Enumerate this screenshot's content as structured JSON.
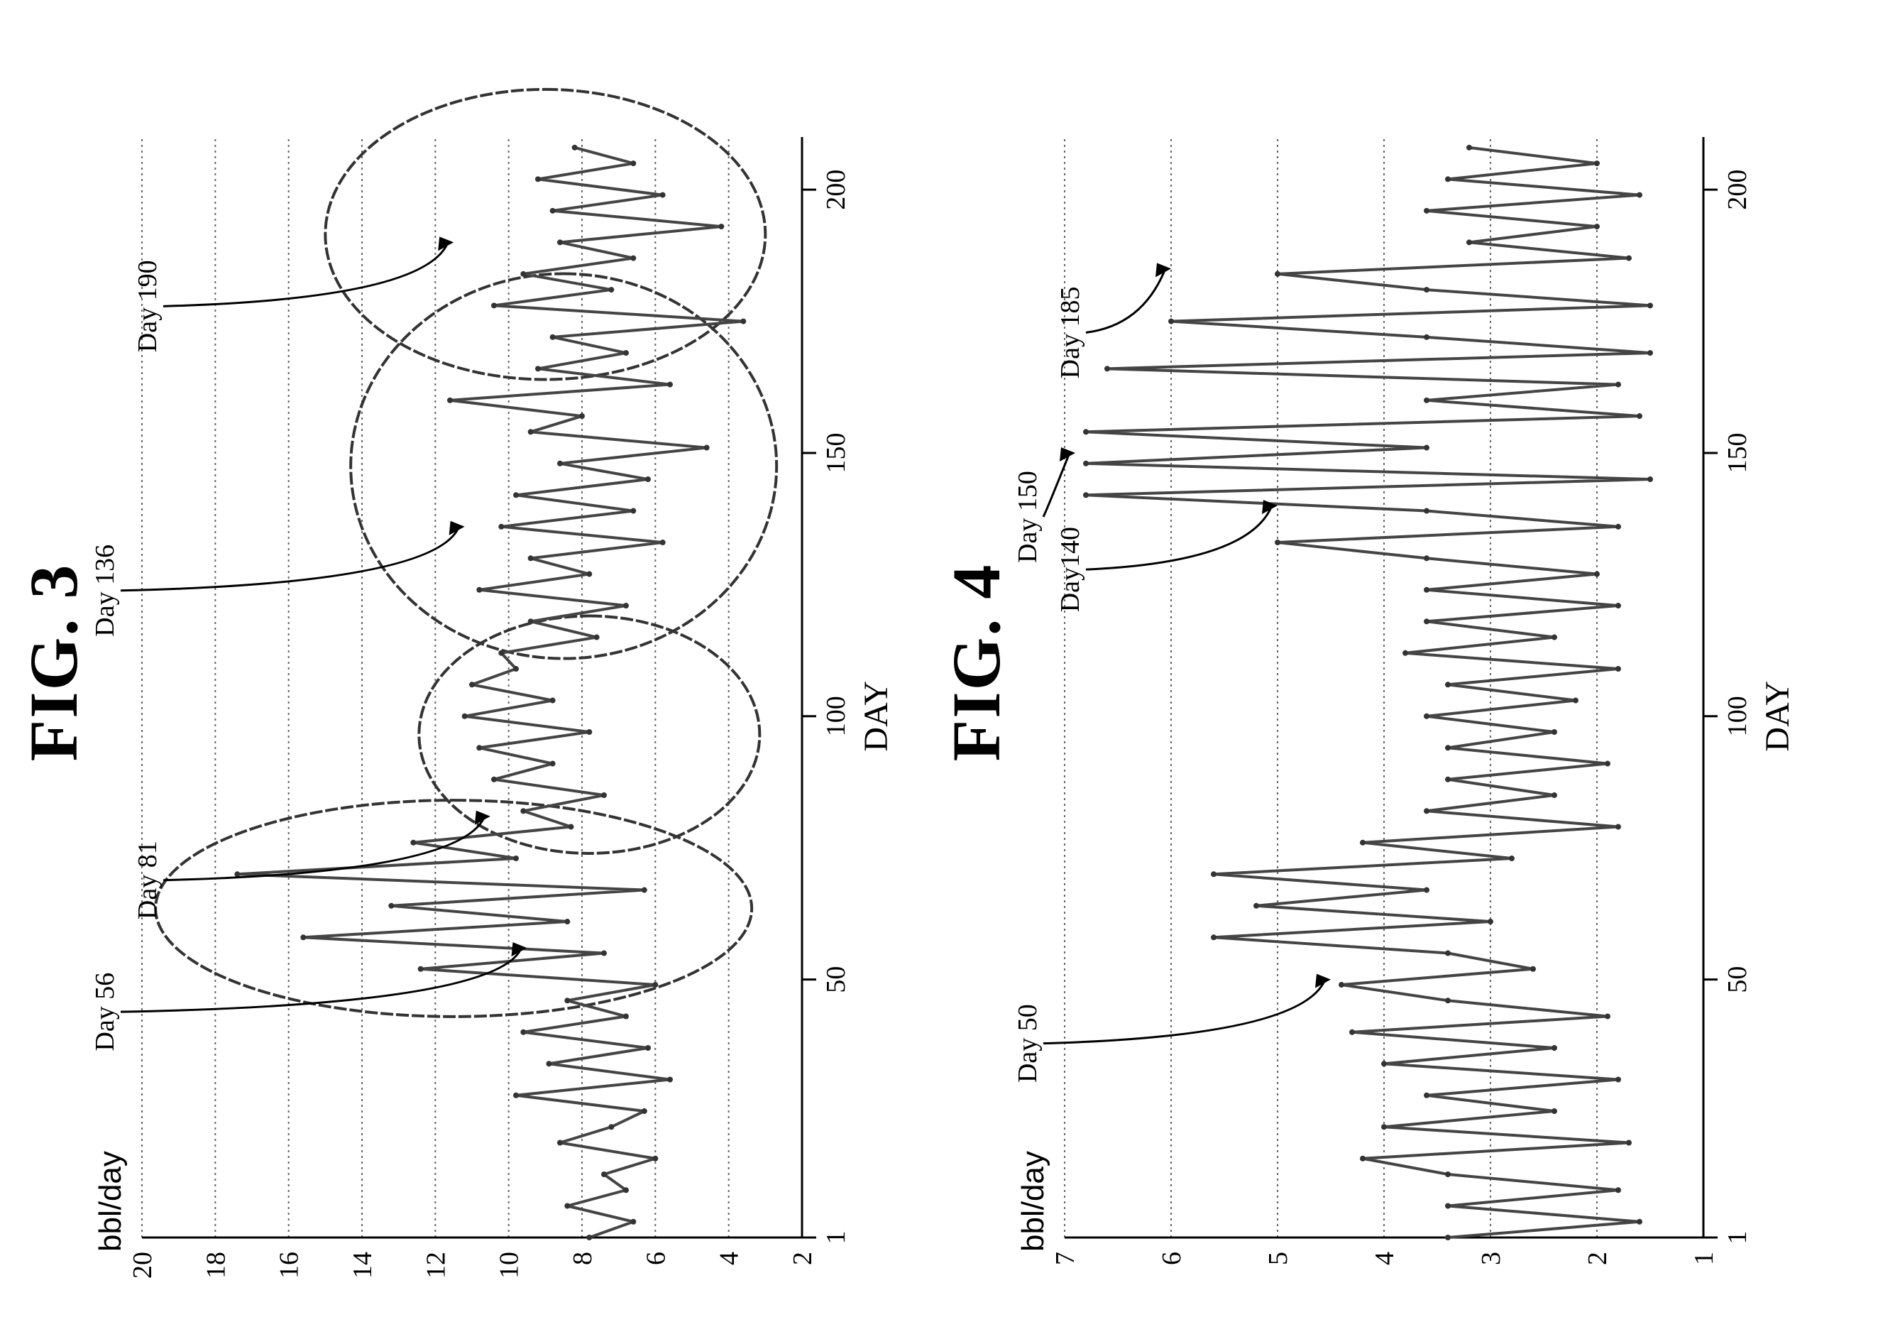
{
  "chart_data": [
    {
      "type": "line",
      "title": "FIG. 3",
      "ylabel": "bbl/day",
      "xlabel": "DAY",
      "ylim": [
        2,
        20
      ],
      "xlim": [
        1,
        210
      ],
      "y_ticks": [
        2,
        4,
        6,
        8,
        10,
        12,
        14,
        16,
        18,
        20
      ],
      "x_ticks": [
        1,
        50,
        100,
        150,
        200
      ],
      "grid": true,
      "annotations": [
        {
          "text": "Day 56",
          "x": 56,
          "y": 9.5
        },
        {
          "text": "Day 81",
          "x": 81,
          "y": 10.5
        },
        {
          "text": "Day 136",
          "x": 136,
          "y": 11.2
        },
        {
          "text": "Day 190",
          "x": 190,
          "y": 11.5
        }
      ],
      "highlighted_day_ranges": [
        [
          47,
          80
        ],
        [
          78,
          115
        ],
        [
          115,
          180
        ],
        [
          168,
          215
        ]
      ],
      "series": [
        {
          "x": [
            1,
            4,
            7,
            10,
            13,
            16,
            19,
            22,
            25,
            28,
            31,
            34,
            37,
            40,
            43,
            46,
            49,
            52,
            55,
            58,
            61,
            64,
            67,
            70,
            73,
            76,
            79,
            82,
            85,
            88,
            91,
            94,
            97,
            100,
            103,
            106,
            109,
            112,
            115,
            118,
            121,
            124,
            127,
            130,
            133,
            136,
            139,
            142,
            145,
            148,
            151,
            154,
            157,
            160,
            163,
            166,
            169,
            172,
            175,
            178,
            181,
            184,
            187,
            190,
            193,
            196,
            199,
            202,
            205,
            208
          ],
          "values": [
            7.8,
            6.6,
            8.4,
            6.8,
            7.4,
            6.0,
            8.6,
            7.2,
            6.3,
            9.8,
            5.6,
            8.9,
            6.2,
            9.6,
            6.8,
            8.4,
            6.0,
            12.4,
            7.4,
            15.6,
            8.4,
            13.2,
            6.3,
            17.4,
            9.8,
            12.6,
            8.3,
            9.6,
            7.4,
            10.4,
            8.8,
            10.8,
            7.8,
            11.2,
            8.8,
            11.0,
            9.8,
            10.2,
            7.6,
            9.4,
            6.8,
            10.8,
            7.8,
            9.4,
            5.8,
            10.2,
            6.6,
            9.8,
            6.2,
            8.6,
            4.6,
            9.4,
            8.0,
            11.6,
            5.6,
            9.2,
            6.8,
            8.8,
            3.6,
            10.4,
            7.2,
            9.6,
            6.6,
            8.6,
            4.2,
            8.8,
            5.8,
            9.2,
            6.6,
            8.2
          ]
        }
      ]
    },
    {
      "type": "line",
      "title": "FIG. 4",
      "ylabel": "bbl/day",
      "xlabel": "DAY",
      "ylim": [
        1,
        7
      ],
      "xlim": [
        1,
        210
      ],
      "y_ticks": [
        1,
        2,
        3,
        4,
        5,
        6,
        7
      ],
      "x_ticks": [
        1,
        50,
        100,
        150,
        200
      ],
      "grid": true,
      "annotations": [
        {
          "text": "Day 50",
          "x": 50,
          "y": 4.5
        },
        {
          "text": "Day140",
          "x": 140,
          "y": 5.0
        },
        {
          "text": "Day 150",
          "x": 150,
          "y": 6.9
        },
        {
          "text": "Day 185",
          "x": 185,
          "y": 6.0
        }
      ],
      "series": [
        {
          "x": [
            1,
            4,
            7,
            10,
            13,
            16,
            19,
            22,
            25,
            28,
            31,
            34,
            37,
            40,
            43,
            46,
            49,
            52,
            55,
            58,
            61,
            64,
            67,
            70,
            73,
            76,
            79,
            82,
            85,
            88,
            91,
            94,
            97,
            100,
            103,
            106,
            109,
            112,
            115,
            118,
            121,
            124,
            127,
            130,
            133,
            136,
            139,
            142,
            145,
            148,
            151,
            154,
            157,
            160,
            163,
            166,
            169,
            172,
            175,
            178,
            181,
            184,
            187,
            190,
            193,
            196,
            199,
            202,
            205,
            208
          ],
          "values": [
            3.4,
            1.6,
            3.4,
            1.8,
            3.4,
            4.2,
            1.7,
            4.0,
            2.4,
            3.6,
            1.8,
            4.0,
            2.4,
            4.3,
            1.9,
            3.4,
            4.4,
            2.6,
            3.4,
            5.6,
            3.0,
            5.2,
            3.6,
            5.6,
            2.8,
            4.2,
            1.8,
            3.6,
            2.4,
            3.4,
            1.9,
            3.4,
            2.4,
            3.6,
            2.2,
            3.4,
            1.8,
            3.8,
            2.4,
            3.6,
            1.8,
            3.6,
            2.0,
            3.6,
            5.0,
            1.8,
            3.6,
            6.8,
            1.5,
            6.8,
            3.6,
            6.8,
            1.6,
            3.6,
            1.8,
            6.6,
            1.5,
            3.6,
            6.0,
            1.5,
            3.6,
            5.0,
            1.7,
            3.2,
            2.0,
            3.6,
            1.6,
            3.4,
            2.0,
            3.2
          ]
        }
      ]
    }
  ]
}
